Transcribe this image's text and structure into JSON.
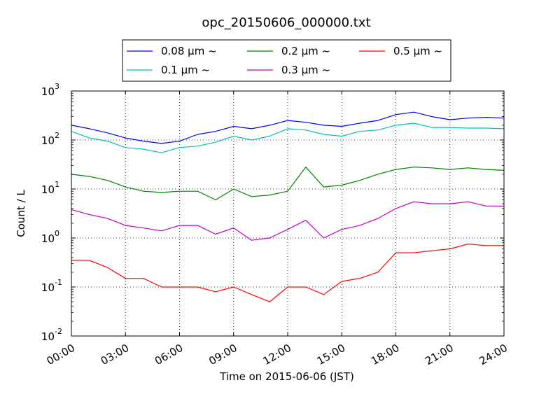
{
  "chart_data": {
    "type": "line",
    "title": "opc_20150606_000000.txt",
    "xlabel": "Time on 2015-06-06 (JST)",
    "ylabel": "Count / L",
    "y_scale": "log",
    "ylim": [
      0.01,
      1000
    ],
    "xlim": [
      "00:00",
      "24:00"
    ],
    "x_ticks": [
      "00:00",
      "03:00",
      "06:00",
      "09:00",
      "12:00",
      "15:00",
      "18:00",
      "21:00",
      "24:00"
    ],
    "y_ticks": [
      {
        "base": "10",
        "exp": "-2"
      },
      {
        "base": "10",
        "exp": "-1"
      },
      {
        "base": "10",
        "exp": "0"
      },
      {
        "base": "10",
        "exp": "1"
      },
      {
        "base": "10",
        "exp": "2"
      },
      {
        "base": "10",
        "exp": "3"
      }
    ],
    "grid": "dotted",
    "legend_position": "top",
    "x": [
      "00:00",
      "01:00",
      "02:00",
      "03:00",
      "04:00",
      "05:00",
      "06:00",
      "07:00",
      "08:00",
      "09:00",
      "10:00",
      "11:00",
      "12:00",
      "13:00",
      "14:00",
      "15:00",
      "16:00",
      "17:00",
      "18:00",
      "19:00",
      "20:00",
      "21:00",
      "22:00",
      "23:00",
      "24:00"
    ],
    "series": [
      {
        "name": "0.08 μm ~",
        "color": "#0000ff",
        "values": [
          200,
          170,
          140,
          110,
          95,
          85,
          95,
          130,
          150,
          190,
          170,
          200,
          250,
          230,
          200,
          190,
          220,
          250,
          330,
          370,
          300,
          260,
          280,
          290,
          280
        ]
      },
      {
        "name": "0.1 μm ~",
        "color": "#00bfbf",
        "values": [
          150,
          110,
          95,
          70,
          65,
          55,
          70,
          75,
          90,
          120,
          100,
          120,
          170,
          160,
          130,
          120,
          150,
          160,
          200,
          220,
          180,
          180,
          175,
          175,
          170
        ]
      },
      {
        "name": "0.2 μm ~",
        "color": "#008000",
        "values": [
          20,
          18,
          15,
          11,
          9,
          8.5,
          9,
          9,
          6,
          10,
          7,
          7.5,
          9,
          28,
          11,
          12,
          15,
          20,
          25,
          28,
          27,
          25,
          27,
          25,
          24
        ]
      },
      {
        "name": "0.3 μm ~",
        "color": "#bf00bf",
        "values": [
          3.8,
          3.0,
          2.5,
          1.8,
          1.6,
          1.4,
          1.8,
          1.8,
          1.2,
          1.6,
          0.9,
          1.0,
          1.5,
          2.3,
          1.0,
          1.5,
          1.8,
          2.5,
          4.0,
          5.5,
          5.0,
          5.0,
          5.5,
          4.5,
          4.5
        ]
      },
      {
        "name": "0.5 μm ~",
        "color": "#ff0000",
        "values": [
          0.35,
          0.35,
          0.25,
          0.15,
          0.15,
          0.1,
          0.1,
          0.1,
          0.08,
          0.1,
          0.07,
          0.05,
          0.1,
          0.1,
          0.07,
          0.13,
          0.15,
          0.2,
          0.5,
          0.5,
          0.55,
          0.6,
          0.75,
          0.7,
          0.7
        ]
      }
    ]
  }
}
